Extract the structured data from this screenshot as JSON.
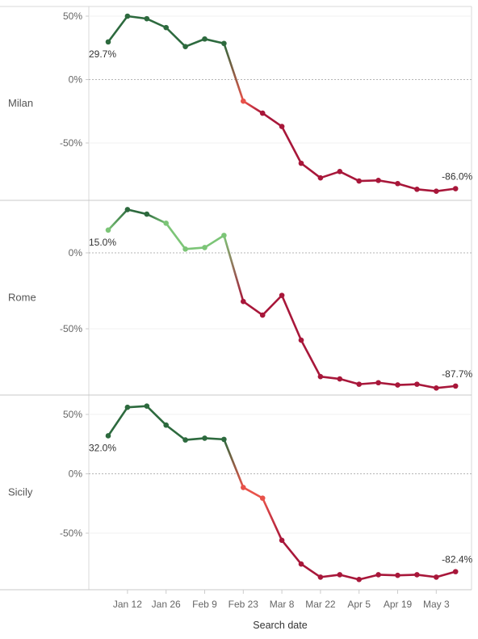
{
  "chart_data": {
    "type": "line",
    "xlabel": "Search date",
    "x_tick_labels": [
      "Jan 12",
      "Jan 26",
      "Feb 9",
      "Feb 23",
      "Mar 8",
      "Mar 22",
      "Apr 5",
      "Apr 19",
      "May 3"
    ],
    "color_scale": {
      "positive": "#2d6a3e",
      "light_positive": "#7cc577",
      "mid_negative": "#e8524a",
      "negative": "#a8173a"
    },
    "series": [
      {
        "name": "Milan",
        "y_ticks": [
          "50%",
          "0%",
          "-50%"
        ],
        "ylim": [
          -95,
          55
        ],
        "start_label": "29.7%",
        "end_label": "-86.0%",
        "values": [
          29.7,
          50,
          48,
          41,
          26,
          32,
          28.5,
          -17,
          -26.5,
          -37,
          -66,
          -77.5,
          -72.5,
          -80,
          -79.5,
          -82,
          -86.5,
          -88,
          -86.0
        ]
      },
      {
        "name": "Rome",
        "y_ticks": [
          "0%",
          "-50%"
        ],
        "ylim": [
          -92,
          27
        ],
        "start_label": "15.0%",
        "end_label": "-87.7%",
        "values": [
          15.0,
          28.5,
          25.5,
          19.5,
          2.5,
          3.5,
          11.5,
          -32,
          -41,
          -28,
          -57.5,
          -81.5,
          -83,
          -86.5,
          -85.5,
          -87,
          -86.5,
          -89,
          -87.7
        ]
      },
      {
        "name": "Sicily",
        "y_ticks": [
          "50%",
          "0%",
          "-50%"
        ],
        "ylim": [
          -97,
          58
        ],
        "start_label": "32.0%",
        "end_label": "-82.4%",
        "values": [
          32.0,
          56,
          57,
          41,
          28.5,
          30,
          29,
          -11.5,
          -20.5,
          -56,
          -76,
          -87,
          -85,
          -89,
          -85,
          -85.5,
          -85,
          -87,
          -82.4
        ]
      }
    ]
  }
}
